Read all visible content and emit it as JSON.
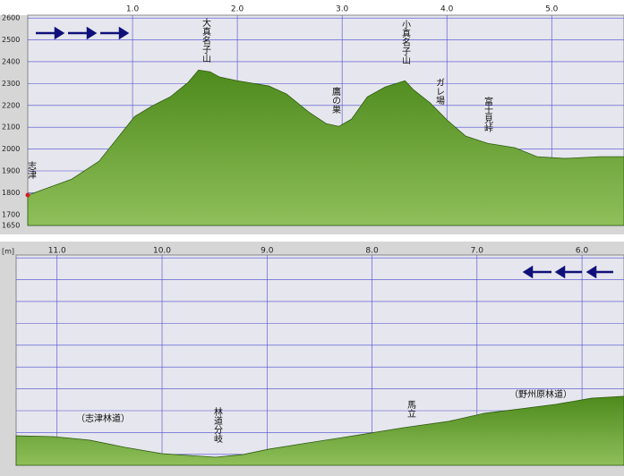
{
  "chart_data": [
    {
      "type": "area",
      "color": "#5e9a2c",
      "grid": true,
      "x": [
        0,
        0.42,
        0.68,
        1.02,
        1.19,
        1.36,
        1.53,
        1.63,
        1.74,
        1.83,
        2.0,
        2.3,
        2.47,
        2.68,
        2.85,
        2.97,
        3.09,
        3.24,
        3.41,
        3.6,
        3.68,
        3.84,
        4.01,
        4.18,
        4.39,
        4.65,
        4.86,
        5.12,
        5.46,
        5.69
      ],
      "values": [
        1789,
        1862,
        1944,
        2149,
        2198,
        2239,
        2305,
        2362,
        2354,
        2330,
        2313,
        2289,
        2252,
        2170,
        2116,
        2104,
        2137,
        2239,
        2284,
        2313,
        2272,
        2211,
        2129,
        2059,
        2026,
        2006,
        1965,
        1957,
        1965,
        1965
      ],
      "xlim": [
        0,
        5.69
      ],
      "ylim": [
        1650,
        2613
      ],
      "xticks": [
        {
          "value": 1,
          "label": "1.0"
        },
        {
          "value": 2,
          "label": "2.0"
        },
        {
          "value": 3,
          "label": "3.0"
        },
        {
          "value": 4,
          "label": "4.0"
        },
        {
          "value": 5,
          "label": "5.0"
        }
      ],
      "yticks": [
        1650,
        1700,
        1800,
        1900,
        2000,
        2100,
        2200,
        2300,
        2400,
        2500,
        2600
      ],
      "y_tick_labels": true,
      "annotations": [
        "志津",
        "大真名子山",
        "鷹の巣",
        "小真名子山",
        "ガレ場",
        "富士見峠"
      ]
    },
    {
      "type": "area",
      "color": "#5e9a2c",
      "grid": true,
      "y_unit": "[m]",
      "x": [
        11.39,
        11.03,
        10.69,
        10.35,
        10.0,
        9.75,
        9.49,
        9.23,
        8.98,
        8.55,
        8.12,
        7.7,
        7.27,
        6.93,
        6.59,
        6.25,
        5.91,
        5.6
      ],
      "values": [
        1785,
        1781,
        1765,
        1732,
        1703,
        1695,
        1687,
        1699,
        1724,
        1757,
        1789,
        1822,
        1851,
        1888,
        1908,
        1929,
        1957,
        1966
      ],
      "xlim": [
        11.39,
        5.6
      ],
      "ylim": [
        1650,
        2613
      ],
      "xticks": [
        {
          "value": 11,
          "label": "11.0"
        },
        {
          "value": 10,
          "label": "10.0"
        },
        {
          "value": 9,
          "label": "9.0"
        },
        {
          "value": 8,
          "label": "8.0"
        },
        {
          "value": 7,
          "label": "7.0"
        },
        {
          "value": 6,
          "label": "6.0"
        }
      ],
      "yticks": [
        1700,
        1800,
        1900,
        2000,
        2100,
        2200,
        2300,
        2400,
        2500,
        2600
      ],
      "y_tick_labels": false,
      "annotations": [
        "（志津林道）",
        "林道分岐",
        "馬立",
        "（野州原林道）"
      ]
    }
  ]
}
